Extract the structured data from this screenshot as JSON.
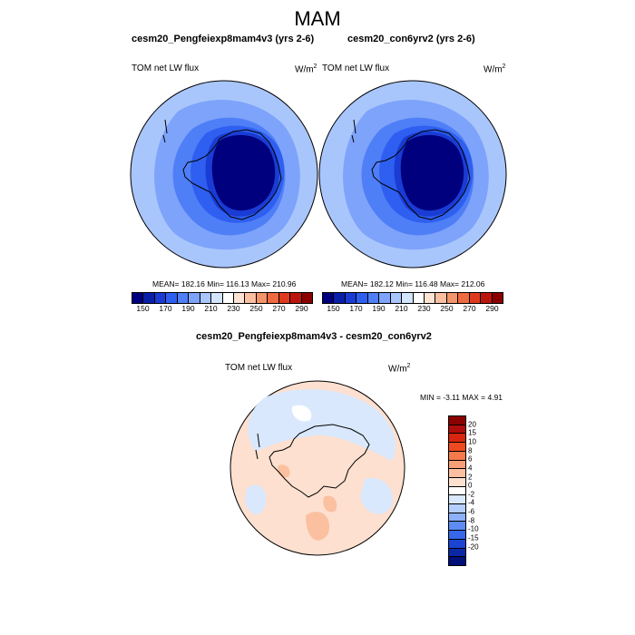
{
  "page": {
    "title": "MAM"
  },
  "panels": [
    {
      "run": "cesm20_Pengfeiexp8mam4v3 (yrs 2-6)",
      "variable": "TOM net LW flux",
      "units_base": "W/m",
      "units_exp": "2",
      "stats": "MEAN= 182.16  Min= 116.13  Max= 210.96"
    },
    {
      "run": "cesm20_con6yrv2 (yrs 2-6)",
      "variable": "TOM net LW flux",
      "units_base": "W/m",
      "units_exp": "2",
      "stats": "MEAN= 182.12  Min= 116.48  Max= 212.06"
    }
  ],
  "diff": {
    "title": "cesm20_Pengfeiexp8mam4v3 - cesm20_con6yrv2",
    "variable": "TOM net LW flux",
    "units_base": "W/m",
    "units_exp": "2",
    "stats": "MIN =  -3.11 MAX =   4.91"
  },
  "colorbar_abs": {
    "colors": [
      "#00007f",
      "#0a1fa8",
      "#1a3cd4",
      "#2e5ff0",
      "#4f7ff7",
      "#7ea3fa",
      "#a9c6fc",
      "#d3e4fd",
      "#ffffff",
      "#fde3d3",
      "#f9bfa0",
      "#f4946b",
      "#ef6a3f",
      "#e03a1e",
      "#bb160e",
      "#8a0000"
    ],
    "labels": [
      "150",
      "170",
      "190",
      "210",
      "230",
      "250",
      "270",
      "290"
    ]
  },
  "colorbar_diff": {
    "colors": [
      "#8a0000",
      "#b00c0c",
      "#d8250f",
      "#ee4a22",
      "#f47a4c",
      "#f7a078",
      "#fac0a0",
      "#fde0cf",
      "#ffffff",
      "#d9e8fd",
      "#b4cffb",
      "#8cb1f8",
      "#5f8cf3",
      "#3667ea",
      "#1a45d2",
      "#0c27a6",
      "#000f7a"
    ],
    "labels": [
      "20",
      "15",
      "10",
      "8",
      "6",
      "4",
      "2",
      "0",
      "-2",
      "-4",
      "-6",
      "-8",
      "-10",
      "-15",
      "-20"
    ]
  }
}
